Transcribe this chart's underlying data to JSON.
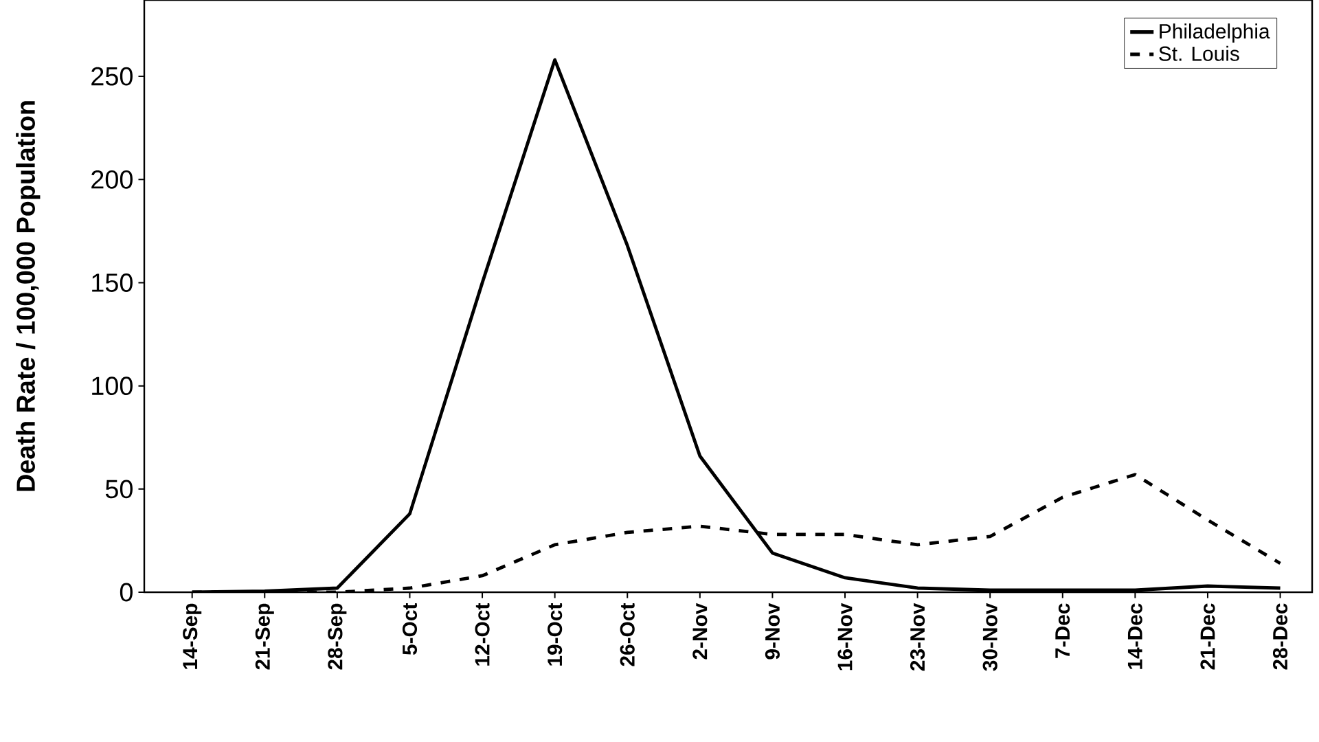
{
  "chart_data": {
    "type": "line",
    "ylabel": "Death Rate / 100,000 Population",
    "categories": [
      "14-Sep",
      "21-Sep",
      "28-Sep",
      "5-Oct",
      "12-Oct",
      "19-Oct",
      "26-Oct",
      "2-Nov",
      "9-Nov",
      "16-Nov",
      "23-Nov",
      "30-Nov",
      "7-Dec",
      "14-Dec",
      "21-Dec",
      "28-Dec"
    ],
    "series": [
      {
        "name": "Philadelphia",
        "color": "#000000",
        "line_style": "solid",
        "values": [
          0,
          0.5,
          2,
          38,
          150,
          258,
          168,
          66,
          19,
          7,
          2,
          1,
          1,
          1,
          3,
          2
        ]
      },
      {
        "name": "St. Louis",
        "color": "#000000",
        "line_style": "dashed",
        "values": [
          0,
          0,
          0,
          2,
          8,
          23,
          29,
          32,
          28,
          28,
          23,
          27,
          46,
          57,
          35,
          14
        ]
      }
    ],
    "ylim": [
      0,
      287
    ],
    "yticks": [
      0,
      50,
      100,
      150,
      200,
      250
    ],
    "grid": false,
    "legend": "top right",
    "marker": "none"
  }
}
